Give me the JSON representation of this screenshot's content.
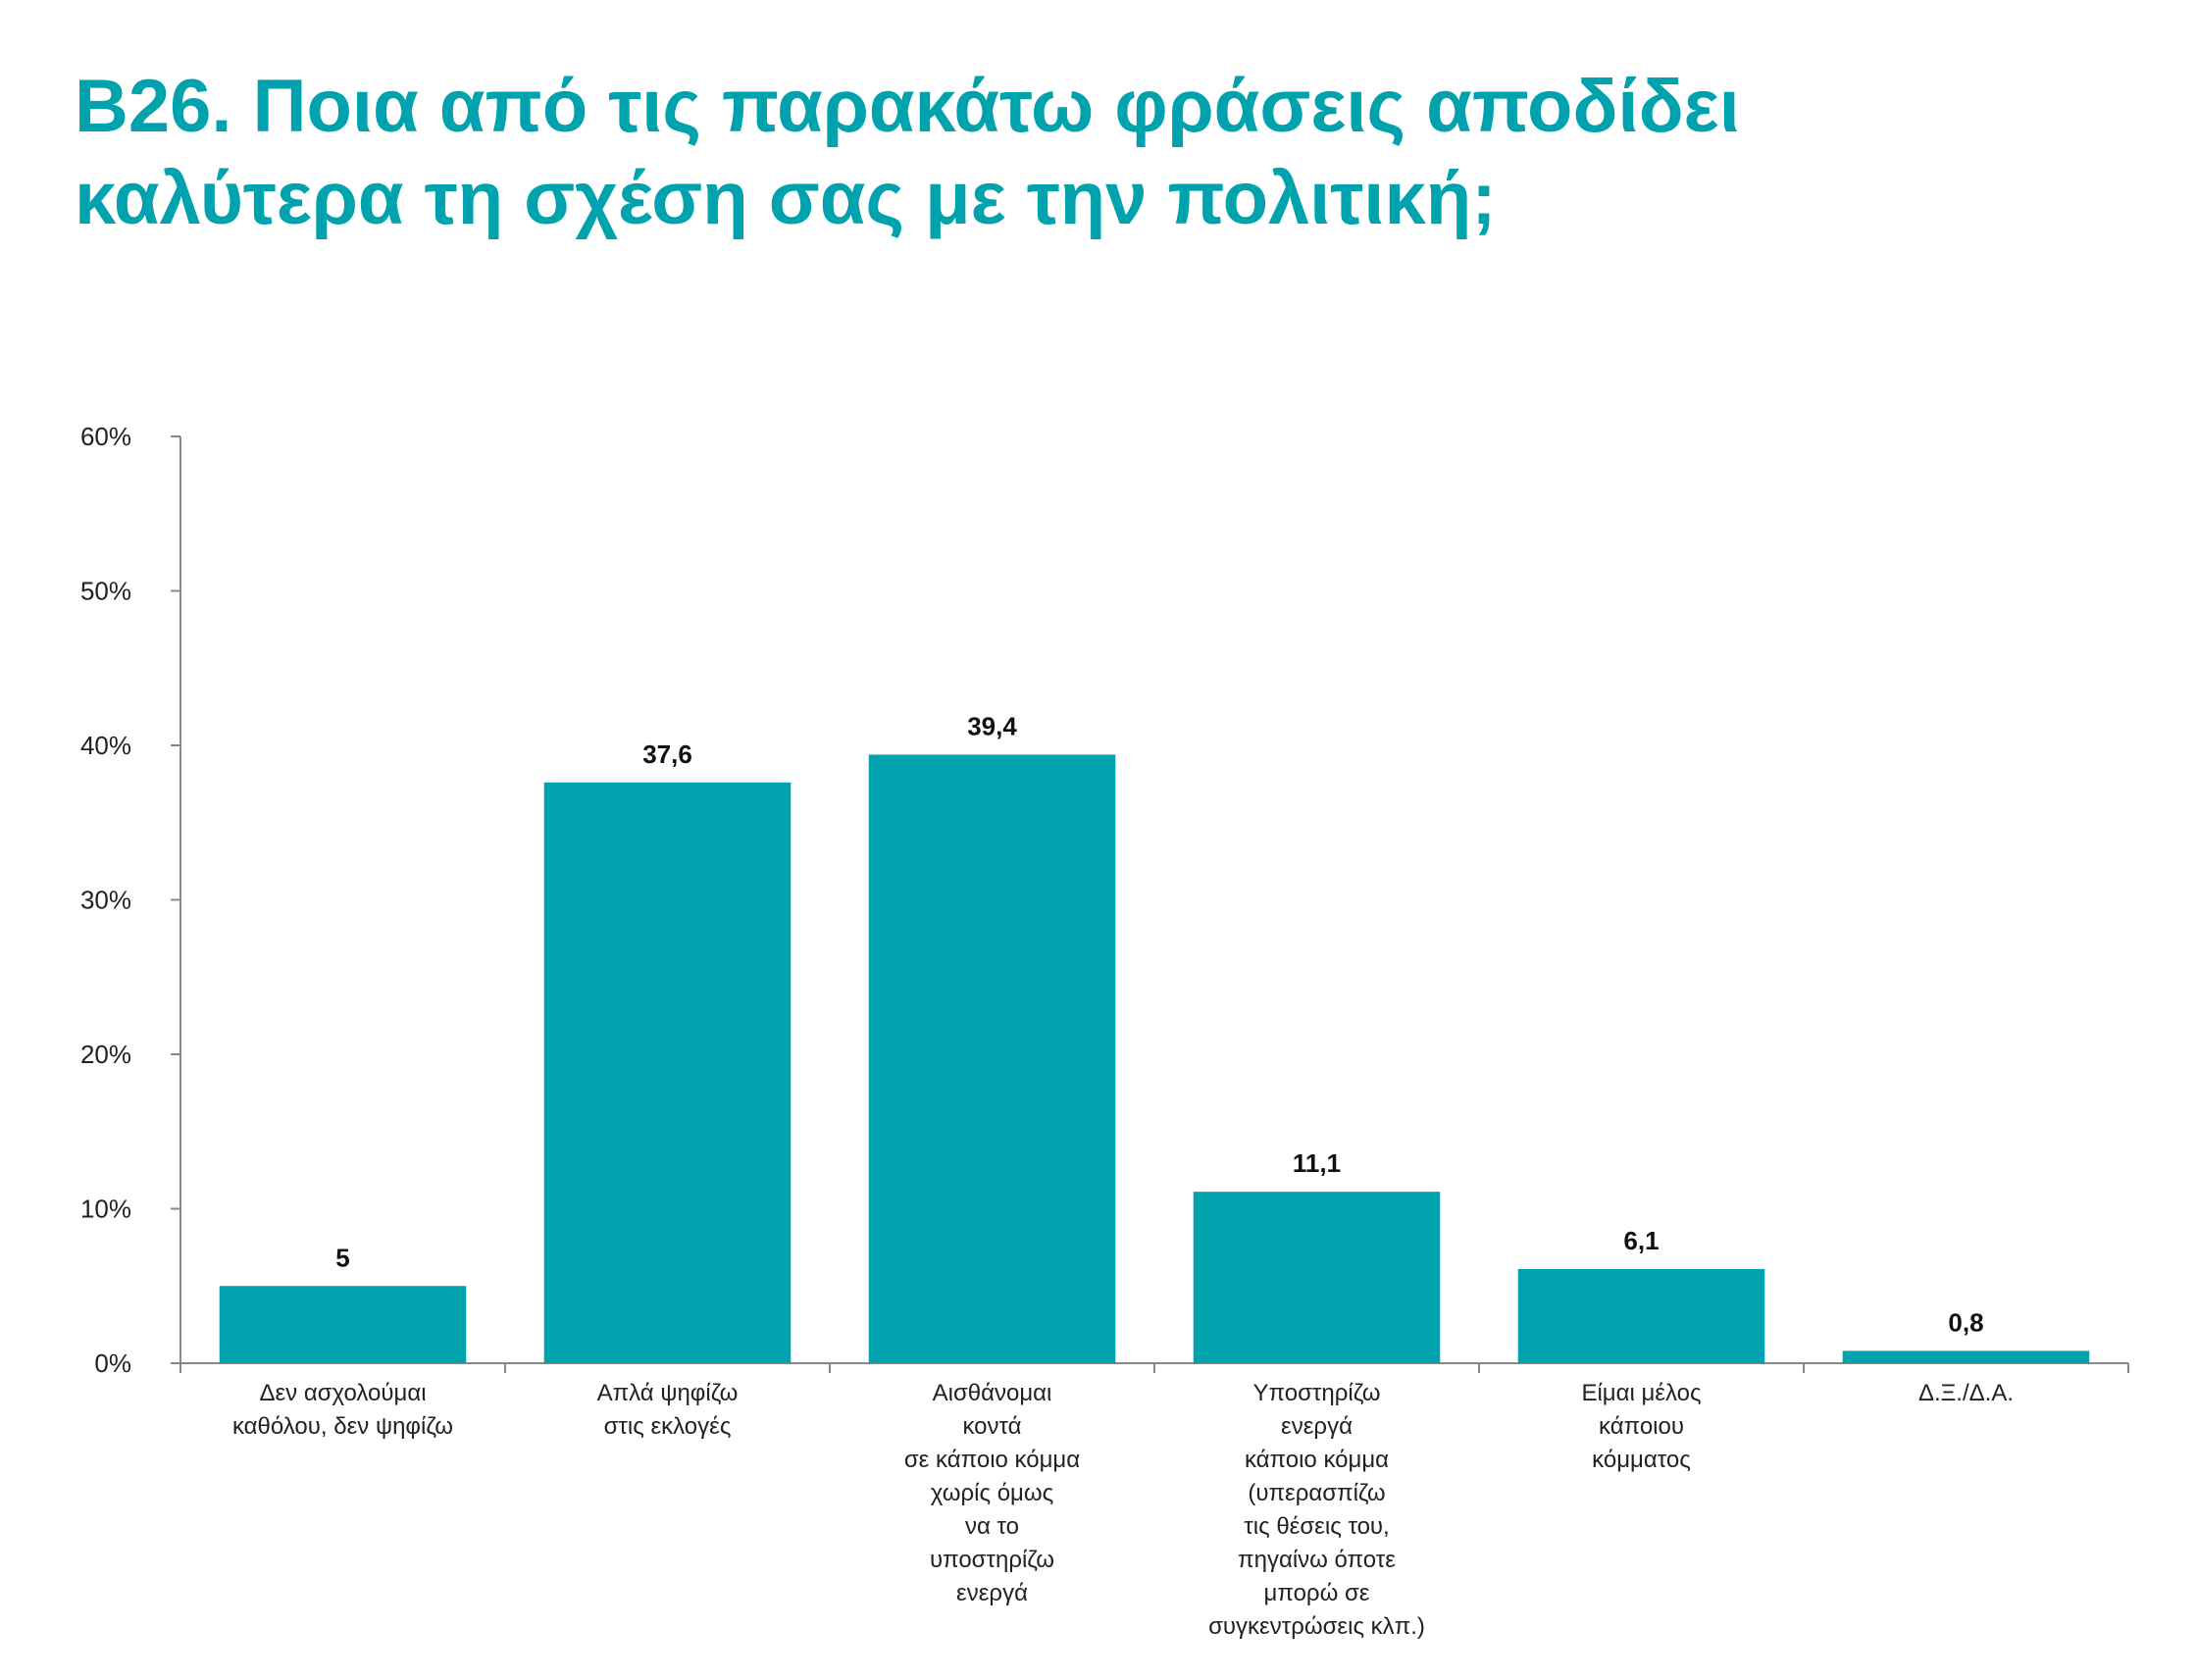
{
  "title_lines": [
    "B26. Ποια από τις παρακάτω φράσεις αποδίδει",
    "καλύτερα τη σχέση σας με την πολιτική;"
  ],
  "colors": {
    "title": "#00a3ad",
    "bar": "#00a3ad",
    "axis": "#888888"
  },
  "chart_data": {
    "type": "bar",
    "title": "B26. Ποια από τις παρακάτω φράσεις αποδίδει καλύτερα τη σχέση σας με την πολιτική;",
    "categories": [
      [
        "Δεν ασχολούμαι",
        "καθόλου, δεν ψηφίζω"
      ],
      [
        "Απλά ψηφίζω",
        "στις εκλογές"
      ],
      [
        "Αισθάνομαι",
        "κοντά",
        "σε κάποιο κόμμα",
        "χωρίς όμως",
        "να το",
        "υποστηρίζω",
        "ενεργά"
      ],
      [
        "Υποστηρίζω",
        "ενεργά",
        "κάποιο κόμμα",
        "(υπερασπίζω",
        "τις θέσεις του,",
        "πηγαίνω όποτε",
        "μπορώ σε",
        "συγκεντρώσεις κλπ.)"
      ],
      [
        "Είμαι μέλος",
        "κάποιου",
        "κόμματος"
      ],
      [
        "Δ.Ξ./Δ.Α."
      ]
    ],
    "values": [
      5,
      37.6,
      39.4,
      11.1,
      6.1,
      0.8
    ],
    "value_labels": [
      "5",
      "37,6",
      "39,4",
      "11,1",
      "6,1",
      "0,8"
    ],
    "ylim": [
      0,
      60
    ],
    "yticks": [
      0,
      10,
      20,
      30,
      40,
      50,
      60
    ],
    "ytick_labels": [
      "0%",
      "10%",
      "20%",
      "30%",
      "40%",
      "50%",
      "60%"
    ],
    "xlabel": "",
    "ylabel": "",
    "grid": false,
    "legend": "none"
  }
}
